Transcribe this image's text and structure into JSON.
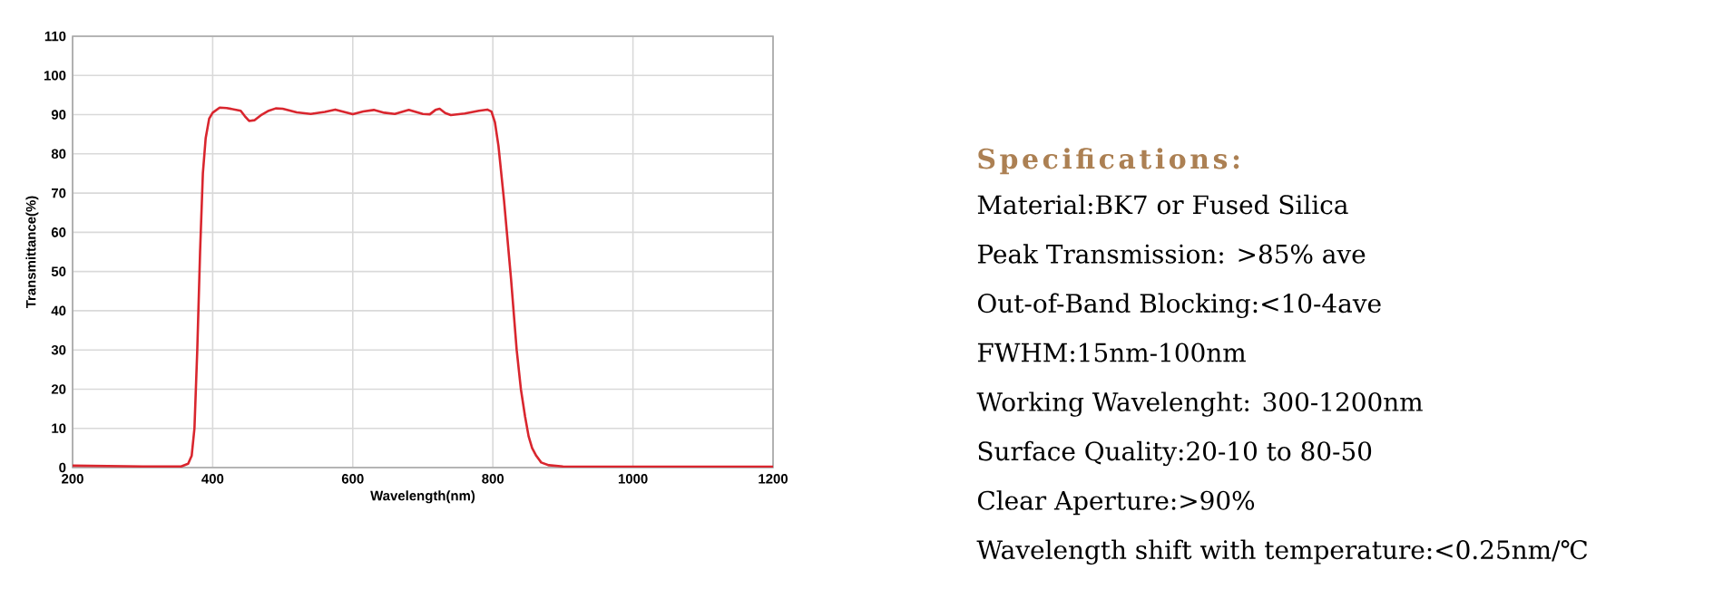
{
  "chart_data": [
    {
      "type": "line",
      "xlabel": "Wavelength(nm)",
      "ylabel": "Transmittance(%)",
      "xlim": [
        200,
        1200
      ],
      "ylim": [
        0,
        110
      ],
      "xticks": [
        200,
        400,
        600,
        800,
        1000,
        1200
      ],
      "yticks": [
        0,
        10,
        20,
        30,
        40,
        50,
        60,
        70,
        80,
        90,
        100,
        110
      ],
      "grid": true,
      "marker": "none",
      "line_style": "solid",
      "series": [
        {
          "color": "#d9262e",
          "x": [
            200,
            300,
            355,
            365,
            370,
            374,
            378,
            382,
            386,
            390,
            395,
            400,
            410,
            420,
            440,
            446,
            452,
            460,
            470,
            480,
            490,
            500,
            520,
            540,
            560,
            575,
            590,
            600,
            615,
            630,
            645,
            660,
            680,
            700,
            710,
            718,
            724,
            732,
            740,
            760,
            780,
            792,
            798,
            803,
            808,
            812,
            816,
            820,
            826,
            834,
            840,
            846,
            851,
            856,
            862,
            869,
            880,
            900,
            1000,
            1200
          ],
          "values": [
            0.5,
            0.3,
            0.3,
            1,
            3,
            10,
            30,
            55,
            75,
            84,
            89,
            90.5,
            91.8,
            91.7,
            91,
            89.6,
            88.4,
            88.6,
            90,
            91,
            91.6,
            91.5,
            90.6,
            90.2,
            90.7,
            91.3,
            90.6,
            90.1,
            90.8,
            91.2,
            90.5,
            90.2,
            91.2,
            90.2,
            90.1,
            91.2,
            91.5,
            90.4,
            89.9,
            90.3,
            91,
            91.3,
            90.8,
            88,
            82,
            75,
            68,
            60,
            48,
            30,
            20,
            13,
            8,
            5,
            3,
            1.3,
            0.6,
            0.3,
            0.2,
            0.2
          ]
        }
      ]
    },
    {
      "type": "other",
      "title": "Specifications:",
      "annotations": [
        "Material:BK7 or Fused Silica",
        "Peak Transmission:  >85% ave",
        "Out-of-Band Blocking:<10-4ave",
        "FWHM:15nm-100nm",
        "Working Wavelenght: 300-1200nm",
        "Surface Quality:20-10 to 80-50",
        "Clear Aperture:>90%",
        "Wavelength shift with temperature:<0.25nm/℃"
      ]
    }
  ]
}
